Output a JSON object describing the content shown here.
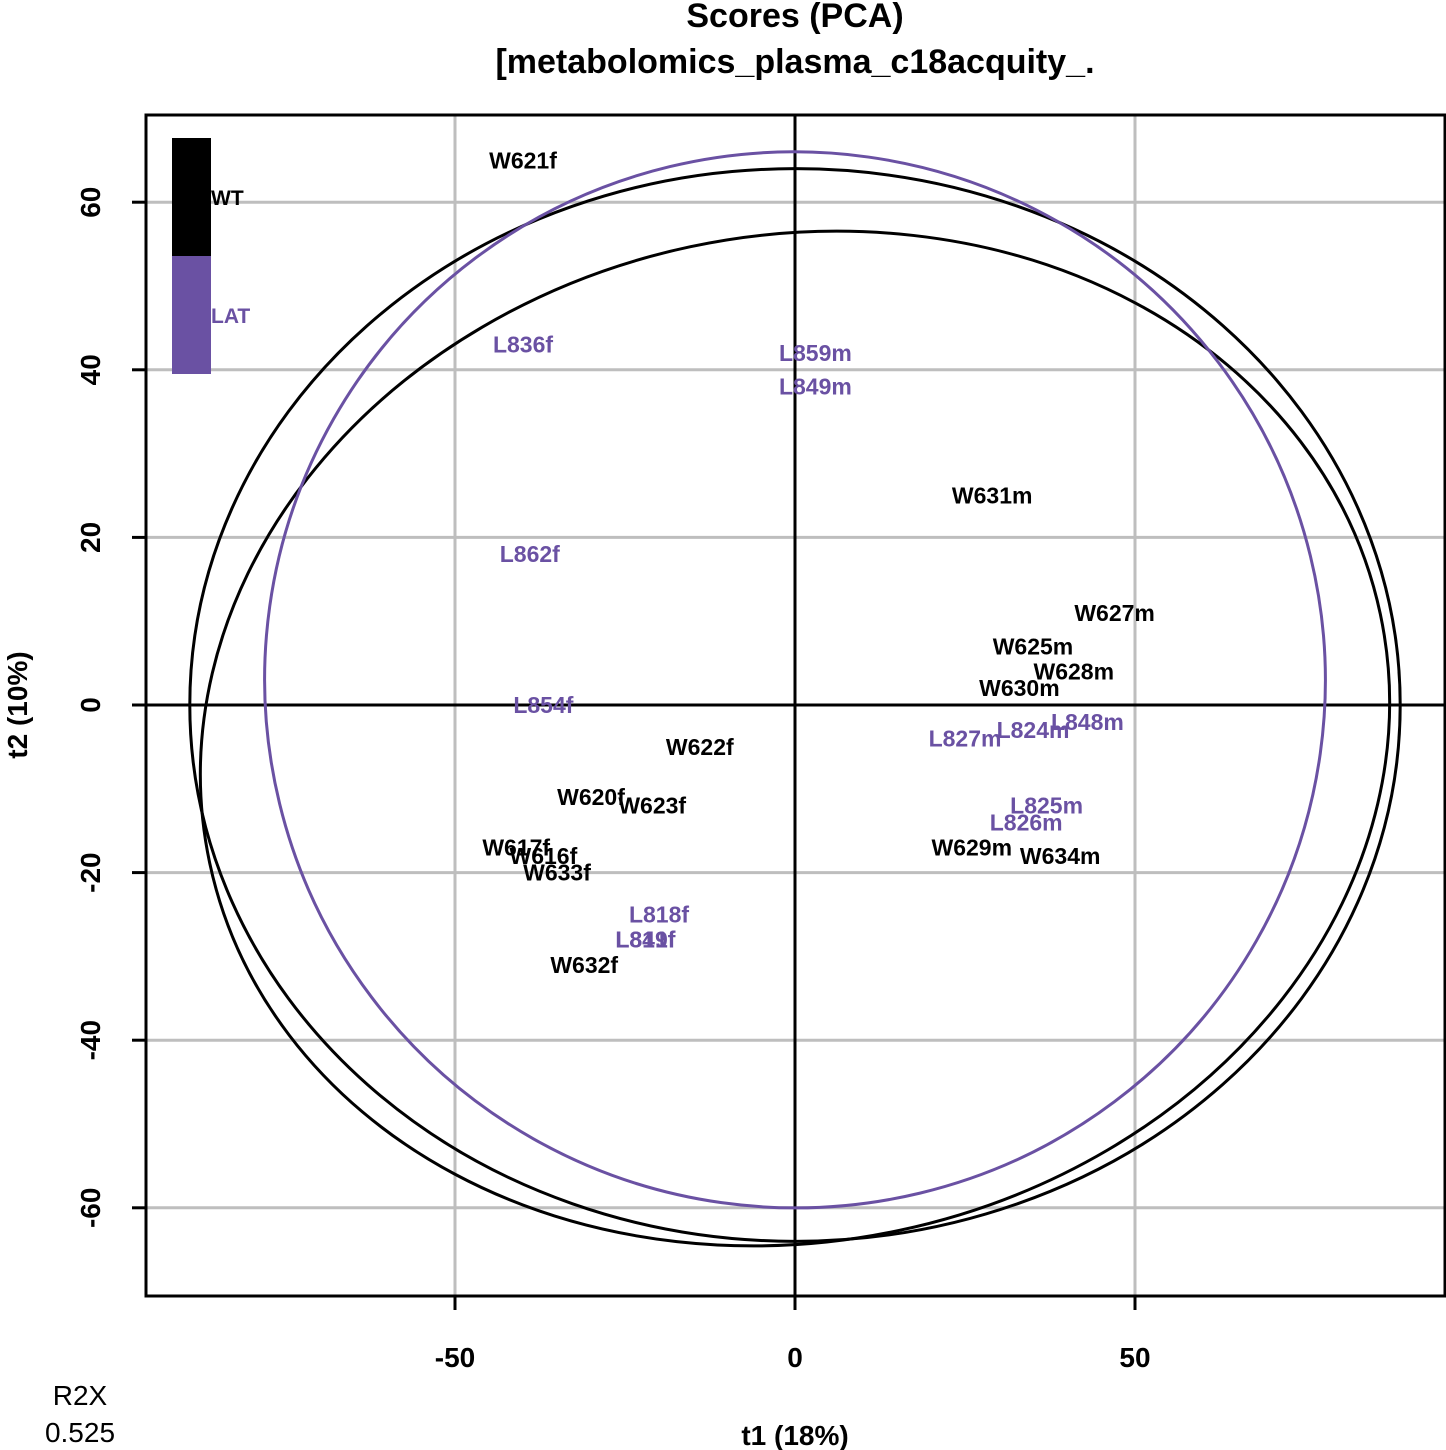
{
  "chart_data": {
    "type": "scatter",
    "title_line1": "Scores (PCA)",
    "title_line2": "[metabolomics_plasma_c18acquity_.",
    "xlabel": "t1 (18%)",
    "ylabel": "t2 (10%)",
    "xlim": [
      -95,
      96
    ],
    "ylim": [
      -70,
      70
    ],
    "xticks": [
      -50,
      0,
      50
    ],
    "yticks": [
      -60,
      -40,
      -20,
      0,
      20,
      40,
      60
    ],
    "grid": true,
    "legend": {
      "position": "top-left",
      "entries": [
        {
          "name": "WT",
          "color": "#000000"
        },
        {
          "name": "LAT",
          "color": "#6A51A3"
        }
      ]
    },
    "series": [
      {
        "name": "WT",
        "color": "#000000",
        "points": [
          {
            "label": "W621f",
            "x": -40,
            "y": 65
          },
          {
            "label": "W631m",
            "x": 29,
            "y": 25
          },
          {
            "label": "W627m",
            "x": 47,
            "y": 11
          },
          {
            "label": "W625m",
            "x": 35,
            "y": 7
          },
          {
            "label": "W628m",
            "x": 41,
            "y": 4
          },
          {
            "label": "W630m",
            "x": 33,
            "y": 2
          },
          {
            "label": "W622f",
            "x": -14,
            "y": -5
          },
          {
            "label": "W620f",
            "x": -30,
            "y": -11
          },
          {
            "label": "W623f",
            "x": -21,
            "y": -12
          },
          {
            "label": "W617f",
            "x": -41,
            "y": -17
          },
          {
            "label": "W616f",
            "x": -37,
            "y": -18
          },
          {
            "label": "W633f",
            "x": -35,
            "y": -20
          },
          {
            "label": "W629m",
            "x": 26,
            "y": -17
          },
          {
            "label": "W634m",
            "x": 39,
            "y": -18
          },
          {
            "label": "W632f",
            "x": -31,
            "y": -31
          }
        ]
      },
      {
        "name": "LAT",
        "color": "#6A51A3",
        "points": [
          {
            "label": "L836f",
            "x": -40,
            "y": 43
          },
          {
            "label": "L859m",
            "x": 3,
            "y": 42
          },
          {
            "label": "L849m",
            "x": 3,
            "y": 38
          },
          {
            "label": "L862f",
            "x": -39,
            "y": 18
          },
          {
            "label": "L854f",
            "x": -37,
            "y": 0
          },
          {
            "label": "L827m",
            "x": 25,
            "y": -4
          },
          {
            "label": "L824m",
            "x": 35,
            "y": -3
          },
          {
            "label": "L848m",
            "x": 43,
            "y": -2
          },
          {
            "label": "L825m",
            "x": 37,
            "y": -12
          },
          {
            "label": "L826m",
            "x": 34,
            "y": -14
          },
          {
            "label": "L818f",
            "x": -20,
            "y": -25
          },
          {
            "label": "L819f",
            "x": -22,
            "y": -28
          },
          {
            "label": "L841f",
            "x": -22,
            "y": -28
          }
        ]
      }
    ],
    "ellipses": [
      {
        "name": "Hotelling T2 (overall)",
        "color": "#000000",
        "cx": 0,
        "cy": 0,
        "rx": 89,
        "ry": 64
      },
      {
        "name": "WT",
        "color": "#000000",
        "cx": 0,
        "cy": -4,
        "rx": 88,
        "ry": 60,
        "angle": 12
      },
      {
        "name": "LAT",
        "color": "#6A51A3",
        "cx": 0,
        "cy": 3,
        "rx": 78,
        "ry": 63,
        "angle": -8
      }
    ]
  },
  "footer": {
    "r2x_label": "R2X",
    "r2x_value": "0.525"
  }
}
